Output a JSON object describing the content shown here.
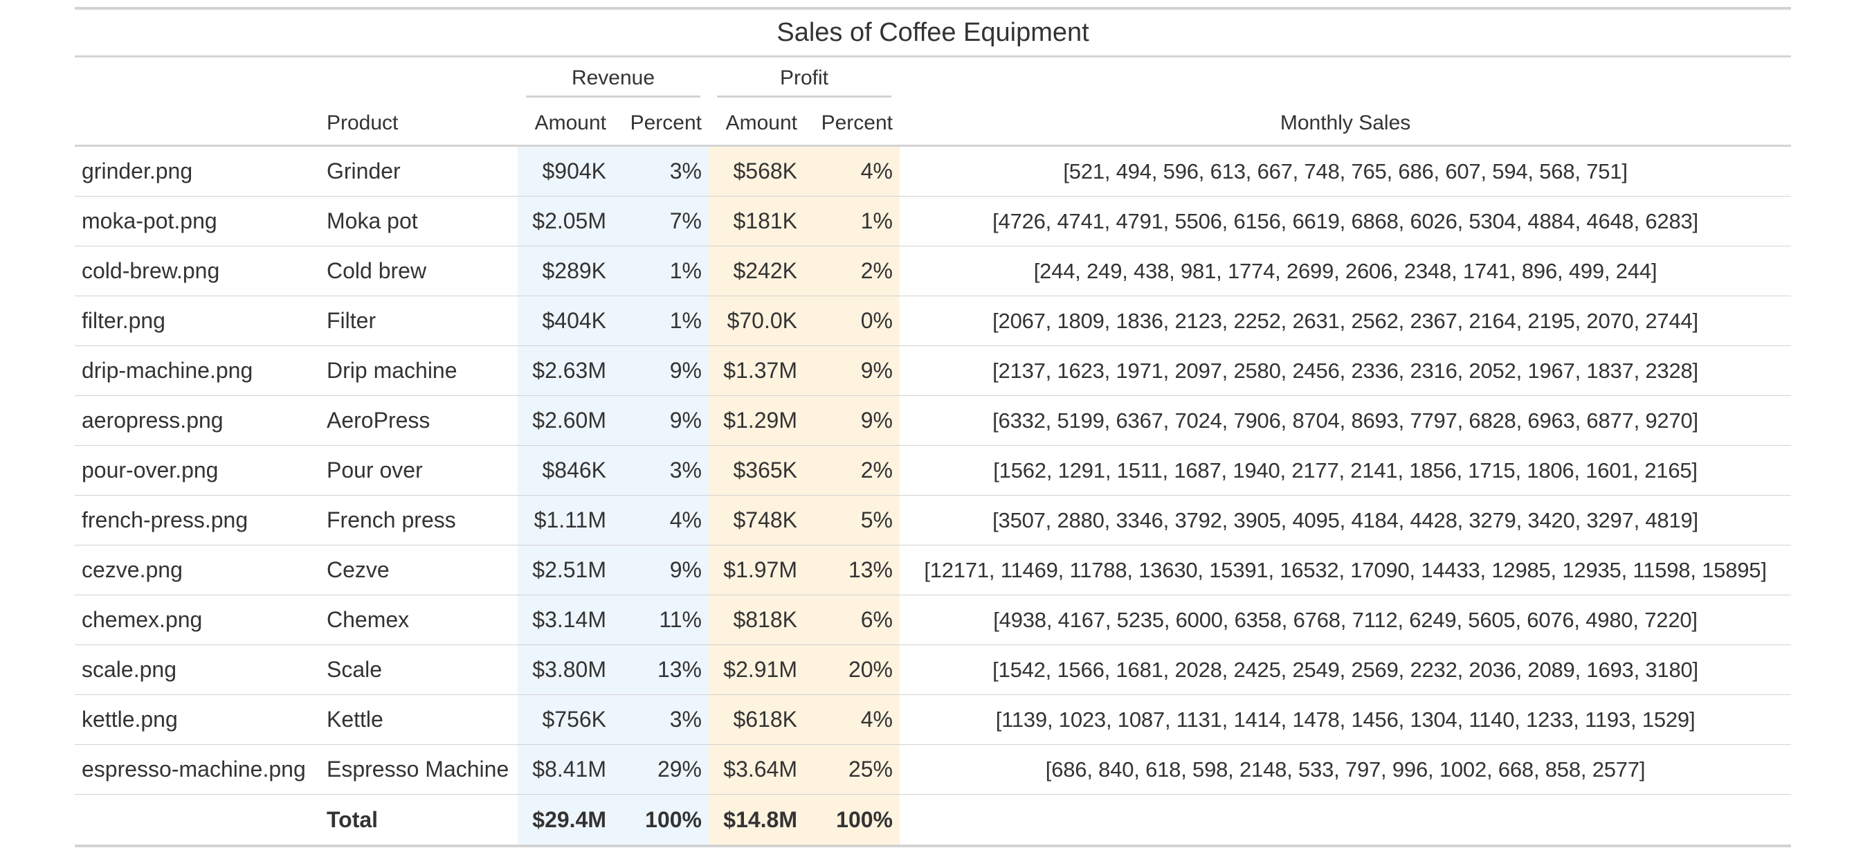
{
  "table": {
    "title": "Sales of Coffee Equipment",
    "spanners": {
      "revenue": "Revenue",
      "profit": "Profit"
    },
    "columns": {
      "file": "",
      "product": "Product",
      "revenue_amount": "Amount",
      "revenue_percent": "Percent",
      "profit_amount": "Amount",
      "profit_percent": "Percent",
      "monthly_sales": "Monthly Sales"
    },
    "rows": [
      {
        "file": "grinder.png",
        "product": "Grinder",
        "rev_amt": "$904K",
        "rev_pct": "3%",
        "pro_amt": "$568K",
        "pro_pct": "4%",
        "monthly": "[521, 494, 596, 613, 667, 748, 765, 686, 607, 594, 568, 751]"
      },
      {
        "file": "moka-pot.png",
        "product": "Moka pot",
        "rev_amt": "$2.05M",
        "rev_pct": "7%",
        "pro_amt": "$181K",
        "pro_pct": "1%",
        "monthly": "[4726, 4741, 4791, 5506, 6156, 6619, 6868, 6026, 5304, 4884, 4648, 6283]"
      },
      {
        "file": "cold-brew.png",
        "product": "Cold brew",
        "rev_amt": "$289K",
        "rev_pct": "1%",
        "pro_amt": "$242K",
        "pro_pct": "2%",
        "monthly": "[244, 249, 438, 981, 1774, 2699, 2606, 2348, 1741, 896, 499, 244]"
      },
      {
        "file": "filter.png",
        "product": "Filter",
        "rev_amt": "$404K",
        "rev_pct": "1%",
        "pro_amt": "$70.0K",
        "pro_pct": "0%",
        "monthly": "[2067, 1809, 1836, 2123, 2252, 2631, 2562, 2367, 2164, 2195, 2070, 2744]"
      },
      {
        "file": "drip-machine.png",
        "product": "Drip machine",
        "rev_amt": "$2.63M",
        "rev_pct": "9%",
        "pro_amt": "$1.37M",
        "pro_pct": "9%",
        "monthly": "[2137, 1623, 1971, 2097, 2580, 2456, 2336, 2316, 2052, 1967, 1837, 2328]"
      },
      {
        "file": "aeropress.png",
        "product": "AeroPress",
        "rev_amt": "$2.60M",
        "rev_pct": "9%",
        "pro_amt": "$1.29M",
        "pro_pct": "9%",
        "monthly": "[6332, 5199, 6367, 7024, 7906, 8704, 8693, 7797, 6828, 6963, 6877, 9270]"
      },
      {
        "file": "pour-over.png",
        "product": "Pour over",
        "rev_amt": "$846K",
        "rev_pct": "3%",
        "pro_amt": "$365K",
        "pro_pct": "2%",
        "monthly": "[1562, 1291, 1511, 1687, 1940, 2177, 2141, 1856, 1715, 1806, 1601, 2165]"
      },
      {
        "file": "french-press.png",
        "product": "French press",
        "rev_amt": "$1.11M",
        "rev_pct": "4%",
        "pro_amt": "$748K",
        "pro_pct": "5%",
        "monthly": "[3507, 2880, 3346, 3792, 3905, 4095, 4184, 4428, 3279, 3420, 3297, 4819]"
      },
      {
        "file": "cezve.png",
        "product": "Cezve",
        "rev_amt": "$2.51M",
        "rev_pct": "9%",
        "pro_amt": "$1.97M",
        "pro_pct": "13%",
        "monthly": "[12171, 11469, 11788, 13630, 15391, 16532, 17090, 14433, 12985, 12935, 11598, 15895]"
      },
      {
        "file": "chemex.png",
        "product": "Chemex",
        "rev_amt": "$3.14M",
        "rev_pct": "11%",
        "pro_amt": "$818K",
        "pro_pct": "6%",
        "monthly": "[4938, 4167, 5235, 6000, 6358, 6768, 7112, 6249, 5605, 6076, 4980, 7220]"
      },
      {
        "file": "scale.png",
        "product": "Scale",
        "rev_amt": "$3.80M",
        "rev_pct": "13%",
        "pro_amt": "$2.91M",
        "pro_pct": "20%",
        "monthly": "[1542, 1566, 1681, 2028, 2425, 2549, 2569, 2232, 2036, 2089, 1693, 3180]"
      },
      {
        "file": "kettle.png",
        "product": "Kettle",
        "rev_amt": "$756K",
        "rev_pct": "3%",
        "pro_amt": "$618K",
        "pro_pct": "4%",
        "monthly": "[1139, 1023, 1087, 1131, 1414, 1478, 1456, 1304, 1140, 1233, 1193, 1529]"
      },
      {
        "file": "espresso-machine.png",
        "product": "Espresso Machine",
        "rev_amt": "$8.41M",
        "rev_pct": "29%",
        "pro_amt": "$3.64M",
        "pro_pct": "25%",
        "monthly": "[686, 840, 618, 598, 2148, 533, 797, 996, 1002, 668, 858, 2577]"
      }
    ],
    "total": {
      "label": "Total",
      "rev_amt": "$29.4M",
      "rev_pct": "100%",
      "pro_amt": "$14.8M",
      "pro_pct": "100%"
    },
    "colors": {
      "revenue_bg": "#eef6fd",
      "profit_bg": "#fdf3df",
      "rule": "#d3d3d3",
      "text": "#333333"
    }
  }
}
